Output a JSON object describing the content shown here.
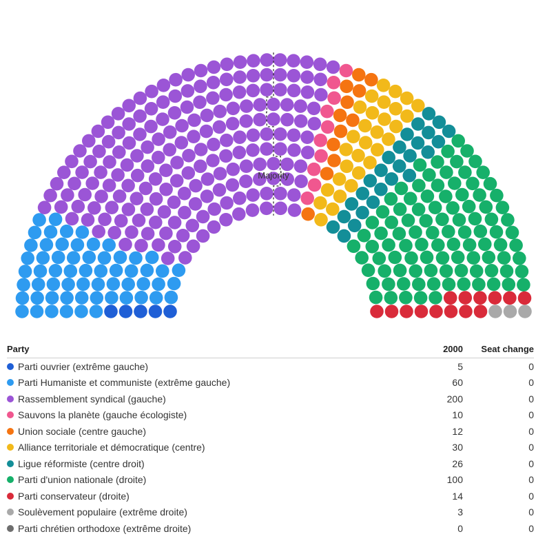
{
  "chart_data": {
    "type": "parliament",
    "majority_label": "Majority",
    "total_seats": 460,
    "columns": {
      "party": "Party",
      "seats": "2000",
      "change": "Seat change"
    },
    "parties": [
      {
        "name": "Parti ouvrier (extrême gauche)",
        "seats": 5,
        "change": "0",
        "color": "#1f5fd6"
      },
      {
        "name": "Parti Humaniste et communiste (extrême gauche)",
        "seats": 60,
        "change": "0",
        "color": "#2e9bf0"
      },
      {
        "name": "Rassemblement syndical (gauche)",
        "seats": 200,
        "change": "0",
        "color": "#9b55d6"
      },
      {
        "name": "Sauvons la planète (gauche écologiste)",
        "seats": 10,
        "change": "0",
        "color": "#f0578f"
      },
      {
        "name": "Union sociale (centre gauche)",
        "seats": 12,
        "change": "0",
        "color": "#f57411"
      },
      {
        "name": "Alliance territoriale et démocratique (centre)",
        "seats": 30,
        "change": "0",
        "color": "#f2b91a"
      },
      {
        "name": "Ligue réformiste (centre droit)",
        "seats": 26,
        "change": "0",
        "color": "#138e98"
      },
      {
        "name": "Parti d'union nationale (droite)",
        "seats": 100,
        "change": "0",
        "color": "#16b06a"
      },
      {
        "name": "Parti conservateur (droite)",
        "seats": 14,
        "change": "0",
        "color": "#d92b3a"
      },
      {
        "name": "Soulèvement populaire (extrême droite)",
        "seats": 3,
        "change": "0",
        "color": "#a9a9a9"
      },
      {
        "name": "Parti chrétien orthodoxe (extrême droite)",
        "seats": 0,
        "change": "0",
        "color": "#6e6e6e"
      }
    ]
  }
}
